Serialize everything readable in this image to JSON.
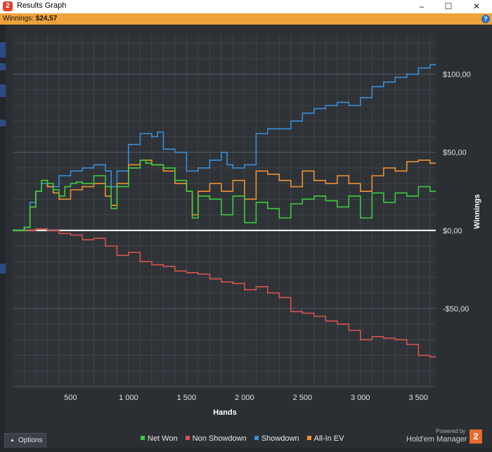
{
  "window": {
    "title": "Results Graph",
    "app_icon": "2",
    "controls": [
      "–",
      "☐",
      "✕"
    ]
  },
  "info": {
    "label": "Winnings:",
    "value": "$24,57"
  },
  "options_label": "Options",
  "footer": {
    "powered_by": "Powered by",
    "brand": "Hold'em Manager",
    "brand_logo": "2"
  },
  "colors": {
    "background": "#2b2f33",
    "plot_bg": "#2f3338",
    "net_won": "#3ccc3c",
    "non_showdown": "#d9534f",
    "showdown": "#3a8fd8",
    "allin_ev": "#f0922f",
    "zero_line": "#ffffff"
  },
  "chart_data": {
    "type": "line",
    "title": "",
    "xlabel": "Hands",
    "ylabel": "Winnings",
    "xlim": [
      0,
      3650
    ],
    "ylim": [
      -100,
      125
    ],
    "x_ticks": [
      500,
      1000,
      1500,
      2000,
      2500,
      3000,
      3500
    ],
    "x_tick_labels": [
      "500",
      "1 000",
      "1 500",
      "2 000",
      "2 500",
      "3 000",
      "3 500"
    ],
    "y_ticks": [
      100,
      50,
      0,
      -50
    ],
    "y_tick_labels": [
      "$100,00",
      "$50,00",
      "$0,00",
      "-$50,00"
    ],
    "grid": true,
    "legend_position": "bottom",
    "series": [
      {
        "name": "Net Won",
        "color": "#3ccc3c",
        "x": [
          0,
          100,
          150,
          200,
          250,
          300,
          350,
          400,
          450,
          500,
          550,
          600,
          700,
          800,
          850,
          900,
          1000,
          1100,
          1150,
          1200,
          1300,
          1400,
          1500,
          1550,
          1600,
          1700,
          1800,
          1900,
          2000,
          2100,
          2200,
          2300,
          2400,
          2500,
          2600,
          2700,
          2800,
          2900,
          3000,
          3100,
          3200,
          3300,
          3400,
          3500,
          3600,
          3650
        ],
        "y": [
          0,
          2,
          15,
          25,
          32,
          30,
          26,
          22,
          28,
          30,
          31,
          30,
          35,
          28,
          14,
          28,
          40,
          45,
          43,
          42,
          40,
          32,
          25,
          8,
          22,
          20,
          10,
          22,
          5,
          18,
          14,
          8,
          17,
          20,
          22,
          19,
          15,
          22,
          8,
          24,
          18,
          24,
          22,
          28,
          25,
          25
        ]
      },
      {
        "name": "Non Showdown",
        "color": "#d9534f",
        "x": [
          0,
          100,
          200,
          300,
          400,
          500,
          600,
          700,
          800,
          900,
          1000,
          1100,
          1200,
          1300,
          1400,
          1500,
          1600,
          1700,
          1800,
          1900,
          2000,
          2100,
          2200,
          2300,
          2400,
          2500,
          2600,
          2700,
          2800,
          2900,
          3000,
          3100,
          3200,
          3300,
          3400,
          3500,
          3600,
          3650
        ],
        "y": [
          0,
          0,
          1,
          0,
          -2,
          -3,
          -6,
          -5,
          -10,
          -16,
          -14,
          -20,
          -22,
          -23,
          -26,
          -27,
          -28,
          -31,
          -33,
          -34,
          -38,
          -36,
          -40,
          -43,
          -52,
          -53,
          -55,
          -58,
          -60,
          -64,
          -70,
          -68,
          -69,
          -70,
          -73,
          -80,
          -81,
          -81
        ]
      },
      {
        "name": "Showdown",
        "color": "#3a8fd8",
        "x": [
          0,
          100,
          150,
          200,
          250,
          300,
          400,
          500,
          600,
          700,
          800,
          850,
          900,
          1000,
          1100,
          1200,
          1250,
          1300,
          1400,
          1500,
          1600,
          1700,
          1800,
          1850,
          1900,
          2000,
          2100,
          2200,
          2300,
          2400,
          2500,
          2600,
          2700,
          2800,
          2900,
          3000,
          3100,
          3200,
          3300,
          3400,
          3500,
          3600,
          3650
        ],
        "y": [
          0,
          2,
          18,
          25,
          30,
          28,
          35,
          38,
          40,
          42,
          38,
          28,
          38,
          55,
          62,
          60,
          63,
          52,
          50,
          38,
          40,
          45,
          50,
          42,
          40,
          42,
          62,
          65,
          65,
          70,
          75,
          78,
          80,
          82,
          80,
          85,
          92,
          95,
          98,
          100,
          104,
          106,
          106
        ]
      },
      {
        "name": "All-In EV",
        "color": "#f0922f",
        "x": [
          0,
          100,
          150,
          200,
          250,
          300,
          350,
          400,
          500,
          600,
          700,
          800,
          850,
          900,
          1000,
          1100,
          1200,
          1300,
          1400,
          1500,
          1550,
          1600,
          1700,
          1800,
          1900,
          2000,
          2100,
          2200,
          2300,
          2400,
          2500,
          2600,
          2700,
          2800,
          2900,
          3000,
          3100,
          3200,
          3300,
          3400,
          3500,
          3600,
          3650
        ],
        "y": [
          0,
          2,
          15,
          25,
          32,
          28,
          24,
          20,
          26,
          28,
          30,
          22,
          16,
          30,
          42,
          45,
          42,
          38,
          30,
          25,
          10,
          25,
          30,
          25,
          32,
          20,
          38,
          36,
          32,
          28,
          38,
          32,
          30,
          35,
          30,
          25,
          35,
          40,
          38,
          44,
          45,
          43,
          43
        ]
      }
    ]
  }
}
